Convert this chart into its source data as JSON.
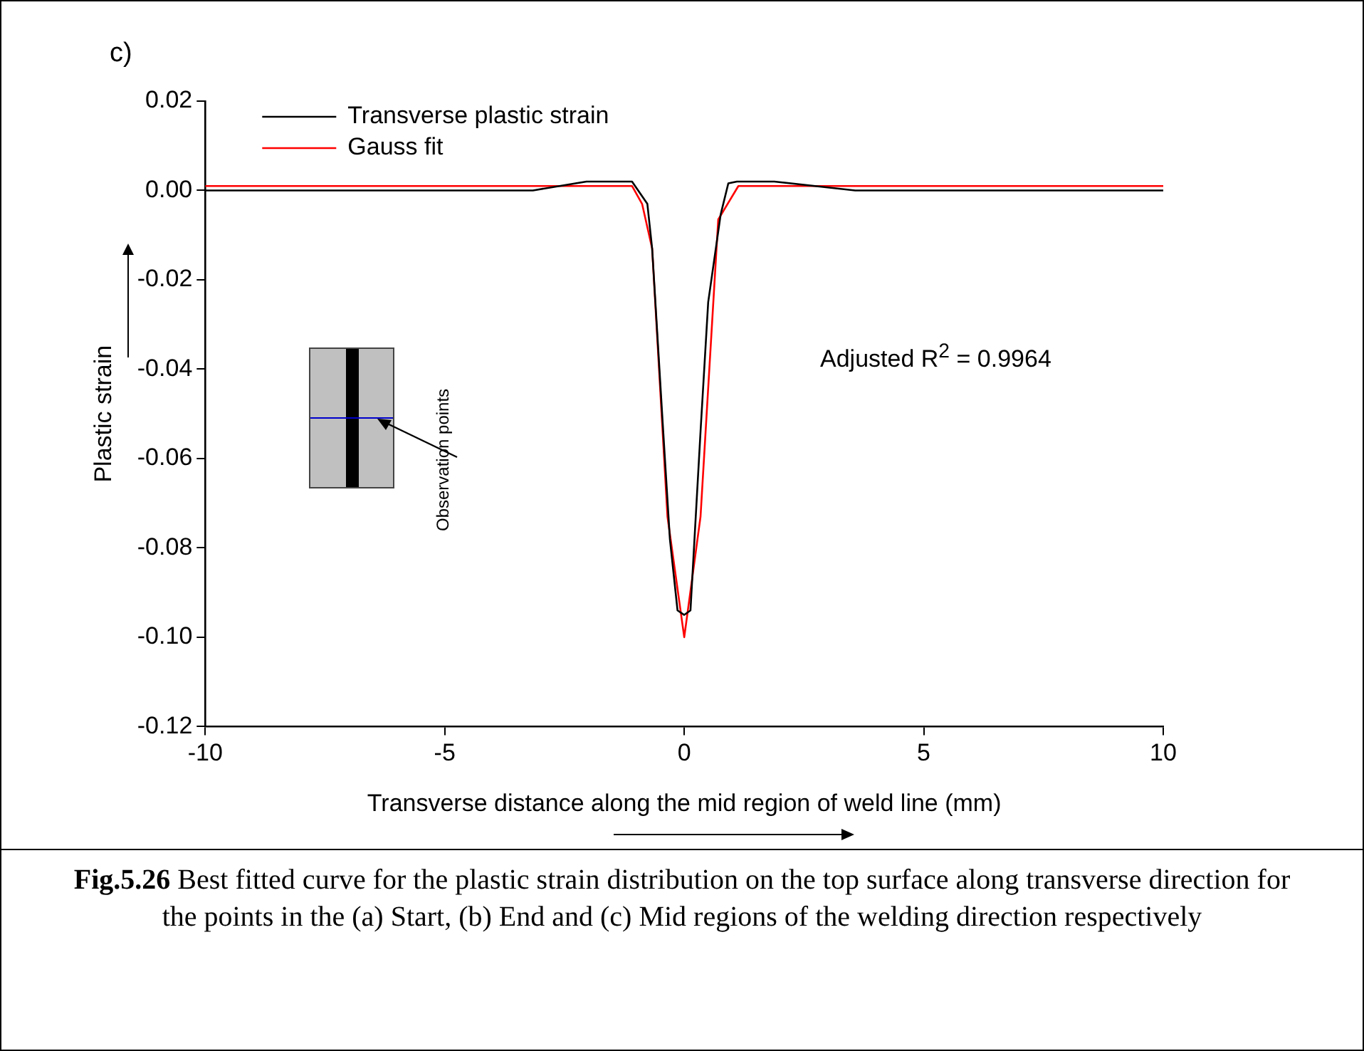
{
  "chart_data": {
    "type": "line",
    "xlabel": "Transverse distance along the mid region of weld line (mm)",
    "ylabel": "Plastic strain",
    "xlim": [
      -10,
      10
    ],
    "xticks": [
      -10,
      -5,
      0,
      5,
      10
    ],
    "ylim": [
      -0.12,
      0.02
    ],
    "yticks": [
      {
        "value": -0.12,
        "label": "-0.12"
      },
      {
        "value": -0.1,
        "label": "-0.10"
      },
      -0.08,
      -0.06,
      -0.04,
      -0.02,
      {
        "value": 0,
        "label": "0.00"
      },
      0.02
    ],
    "grid": false,
    "legend": "top left",
    "marker": "none",
    "line_style": "solid",
    "series": [
      {
        "name": "Transverse plastic strain",
        "color": "#000000",
        "x": [
          -10,
          -3.16,
          -2.04,
          -1.09,
          -0.77,
          -0.67,
          -0.45,
          -0.3,
          -0.14,
          0,
          0.13,
          0.34,
          0.5,
          0.76,
          0.92,
          1.1,
          1.88,
          3.57,
          10
        ],
        "values": [
          0,
          0,
          0.002,
          0.002,
          -0.003,
          -0.013,
          -0.052,
          -0.078,
          -0.094,
          -0.095,
          -0.094,
          -0.054,
          -0.025,
          -0.0054,
          0.0016,
          0.002,
          0.002,
          0,
          0
        ]
      },
      {
        "name": "Gauss fit",
        "color": "#ff0000",
        "x": [
          -10,
          -1.09,
          -0.88,
          -0.67,
          -0.35,
          0,
          0.34,
          0.71,
          1.13,
          10
        ],
        "values": [
          0.001,
          0.001,
          -0.003,
          -0.013,
          -0.073,
          -0.1,
          -0.073,
          -0.0065,
          0.001,
          0.001
        ]
      }
    ],
    "annotations": [
      "c)",
      "Adjusted R$^{2}$ = 0.9964",
      "Observation points",
      "Fig.5.26 Best fitted curve for the plastic strain distribution on the top surface along transverse direction for the points in the (a) Start, (b) End and (c) Mid regions of the welding direction respectively"
    ]
  }
}
